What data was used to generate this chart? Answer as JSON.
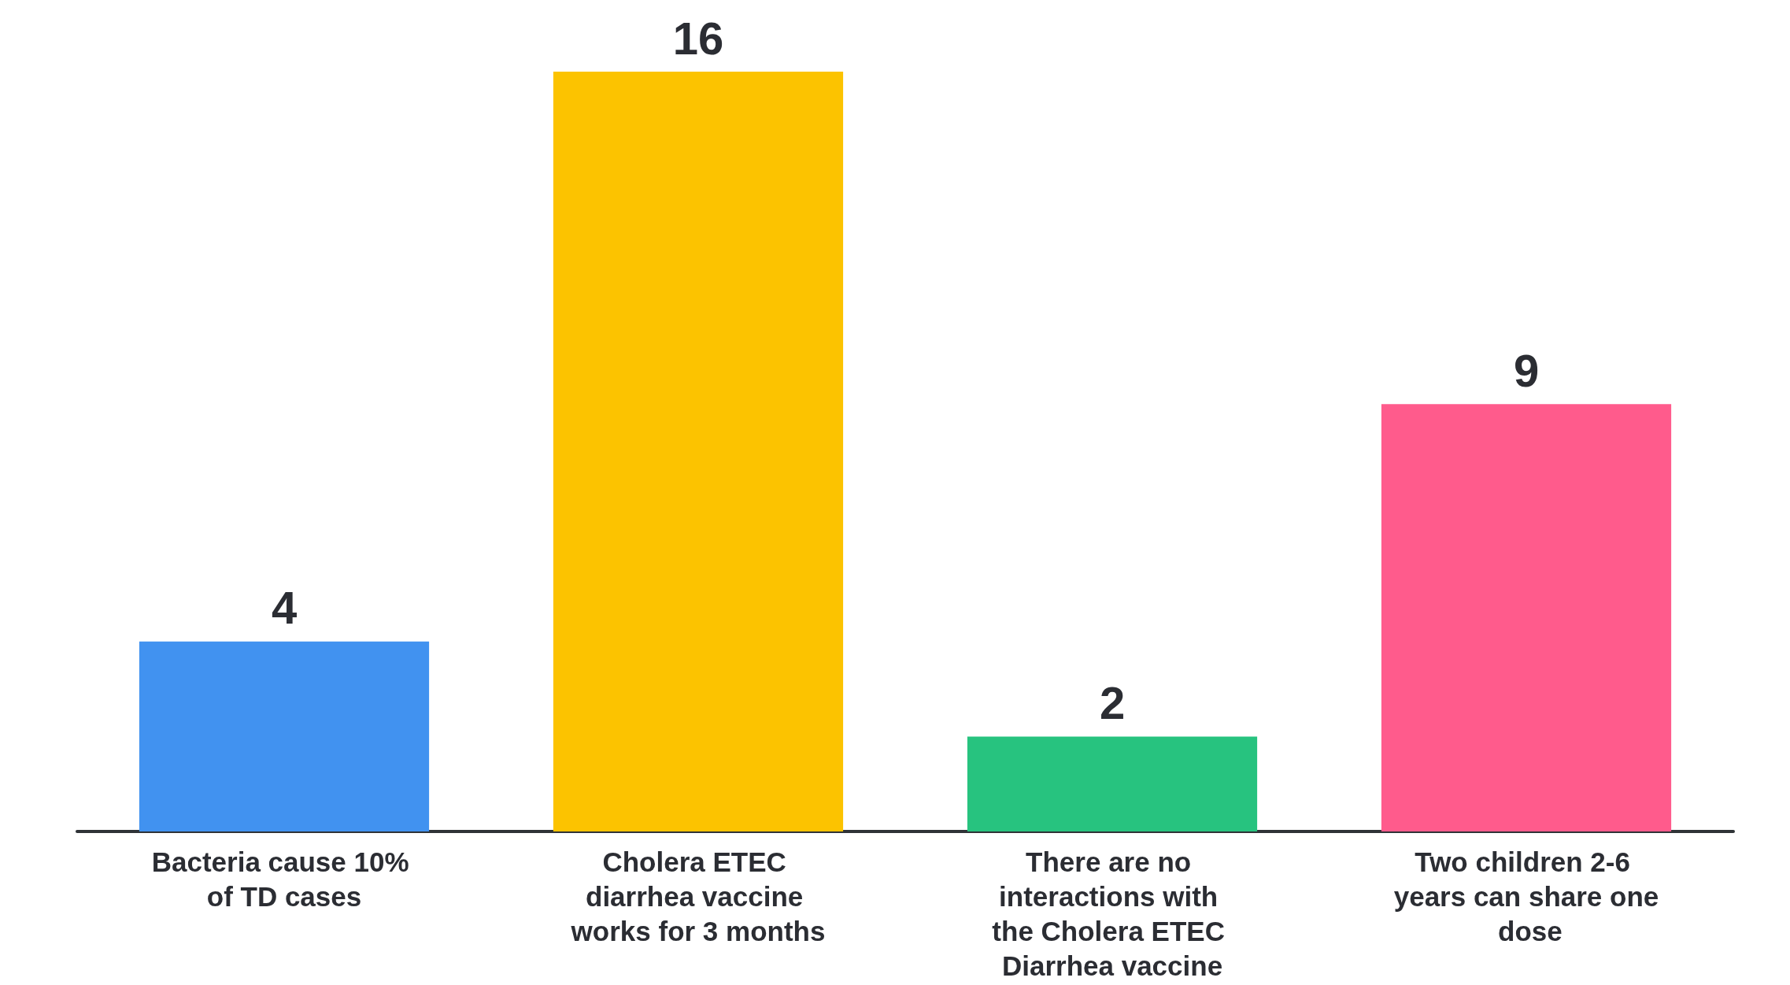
{
  "chart_data": {
    "type": "bar",
    "categories": [
      "Bacteria cause 10% of TD cases",
      "Cholera ETEC diarrhea vaccine works for 3 months",
      "There are no interactions with the Cholera ETEC Diarrhea vaccine",
      "Two children 2-6 years can share one dose"
    ],
    "values": [
      4,
      16,
      2,
      9
    ],
    "colors": [
      "#4192f0",
      "#fcc300",
      "#27c37f",
      "#ff5b8c"
    ],
    "data_labels": true
  }
}
